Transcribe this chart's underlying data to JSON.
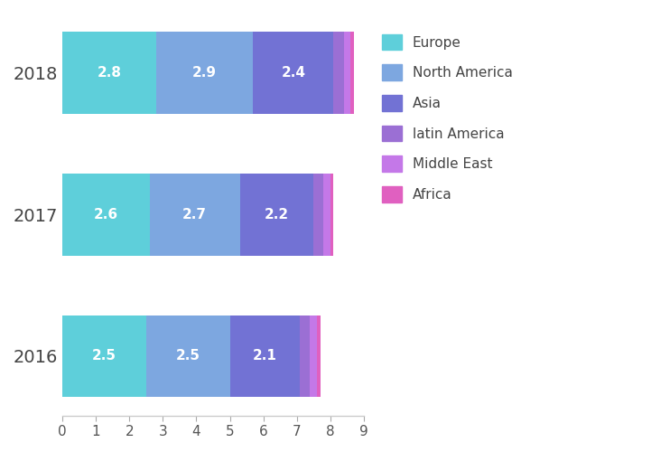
{
  "years": [
    "2016",
    "2017",
    "2018"
  ],
  "segments": [
    "Europe",
    "North America",
    "Asia",
    "latin America",
    "Middle East",
    "Africa"
  ],
  "values": {
    "2018": [
      2.8,
      2.9,
      2.4,
      0.3,
      0.2,
      0.1
    ],
    "2017": [
      2.6,
      2.7,
      2.2,
      0.3,
      0.2,
      0.1
    ],
    "2016": [
      2.5,
      2.5,
      2.1,
      0.3,
      0.2,
      0.1
    ]
  },
  "colors": [
    "#5ecfda",
    "#7da7e0",
    "#7272d4",
    "#9b6fd4",
    "#c478e8",
    "#e060c0"
  ],
  "label_segments": [
    "Europe",
    "North America",
    "Asia"
  ],
  "background_color": "#ffffff",
  "text_color": "#ffffff",
  "label_fontsize": 11,
  "legend_fontsize": 11,
  "xlim": [
    0,
    9
  ],
  "xticks": [
    0,
    1,
    2,
    3,
    4,
    5,
    6,
    7,
    8,
    9
  ]
}
